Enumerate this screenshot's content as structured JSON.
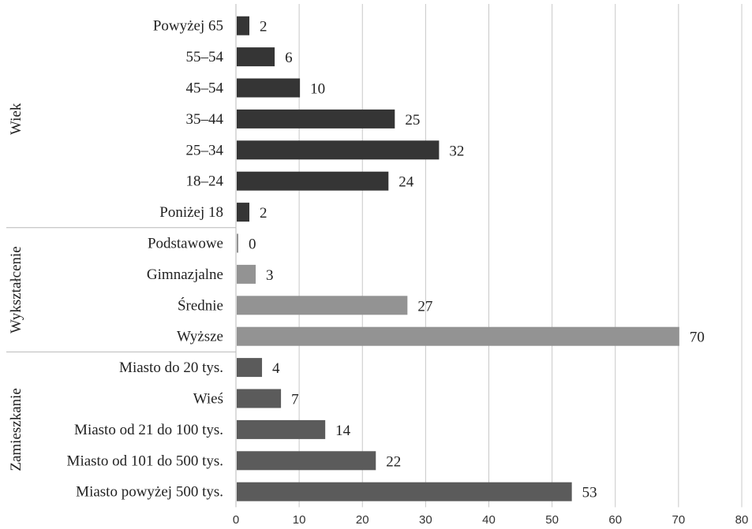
{
  "chart_data": {
    "type": "bar",
    "orientation": "horizontal",
    "groups": [
      {
        "name": "Wiek",
        "color": "#353535",
        "categories": [
          "Powyżej 65",
          "55–54",
          "45–54",
          "35–44",
          "25–34",
          "18–24",
          "Poniżej 18"
        ],
        "values": [
          2,
          6,
          10,
          25,
          32,
          24,
          2
        ]
      },
      {
        "name": "Wykształcenie",
        "color": "#939393",
        "categories": [
          "Podstawowe",
          "Gimnazjalne",
          "Średnie",
          "Wyższe"
        ],
        "values": [
          0,
          3,
          27,
          70
        ]
      },
      {
        "name": "Zamieszkanie",
        "color": "#5b5b5b",
        "categories": [
          "Miasto do 20 tys.",
          "Wieś",
          "Miasto od 21 do 100 tys.",
          "Miasto od 101 do 500 tys.",
          "Miasto powyżej 500 tys."
        ],
        "values": [
          4,
          7,
          14,
          22,
          53
        ]
      }
    ],
    "xlim": [
      0,
      80
    ],
    "xticks": [
      "0",
      "10",
      "20",
      "30",
      "40",
      "50",
      "60",
      "70",
      "80"
    ],
    "grid": true,
    "legend": "none"
  }
}
